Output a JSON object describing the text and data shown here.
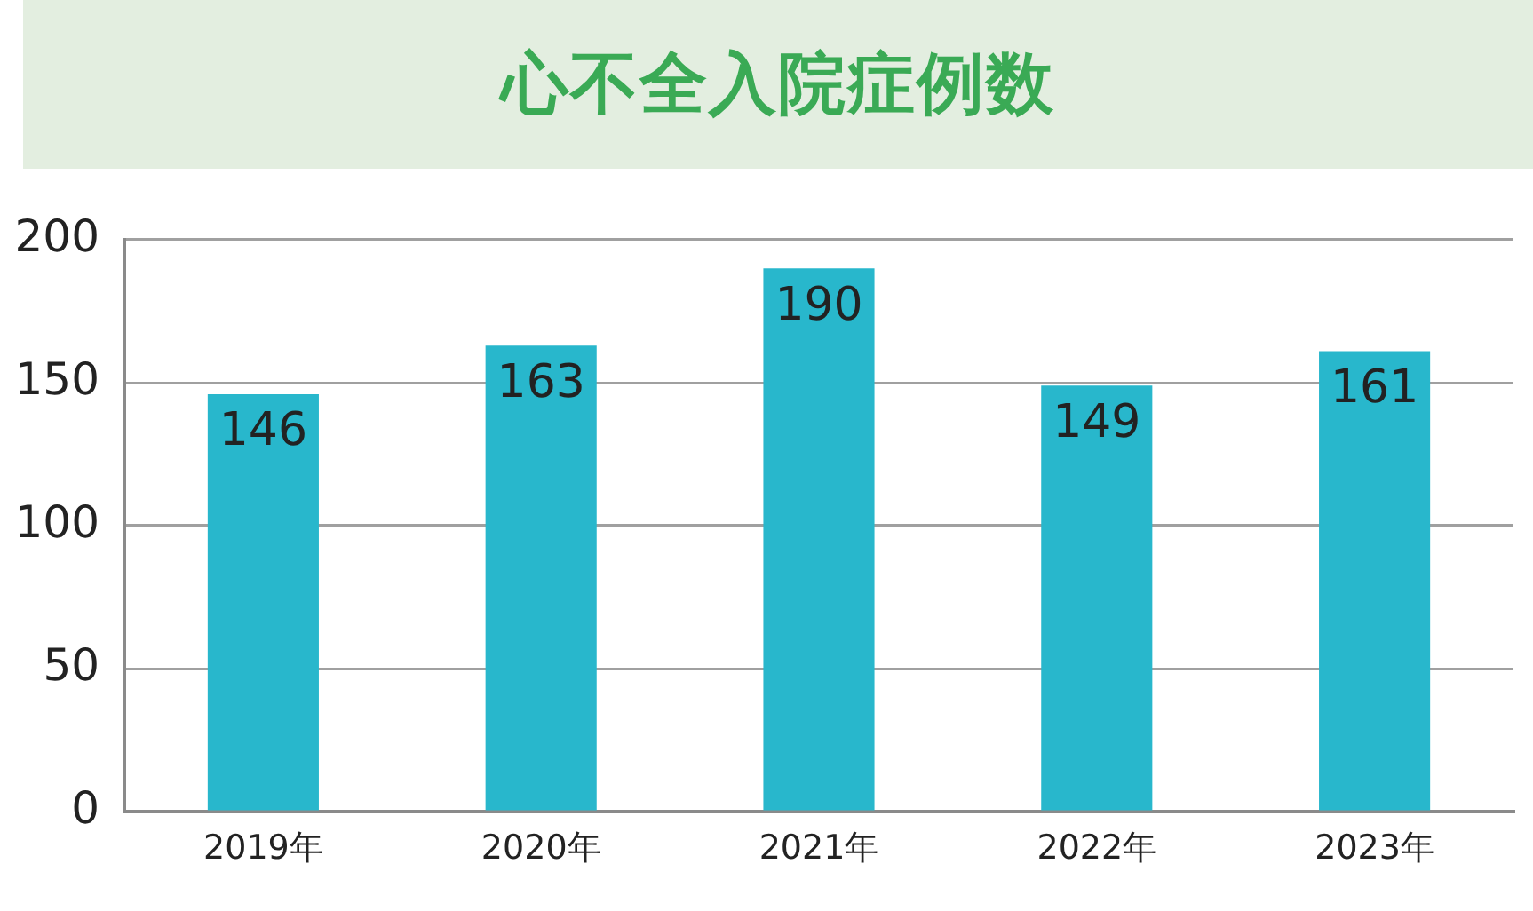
{
  "chart_data": {
    "type": "bar",
    "title": "心不全入院症例数",
    "categories": [
      "2019年",
      "2020年",
      "2021年",
      "2022年",
      "2023年"
    ],
    "values": [
      146,
      163,
      190,
      149,
      161
    ],
    "color": "#28b7cc",
    "ylim": [
      0,
      200
    ],
    "yticks": [
      0,
      50,
      100,
      150,
      200
    ],
    "grid": "y",
    "data_labels": true
  }
}
